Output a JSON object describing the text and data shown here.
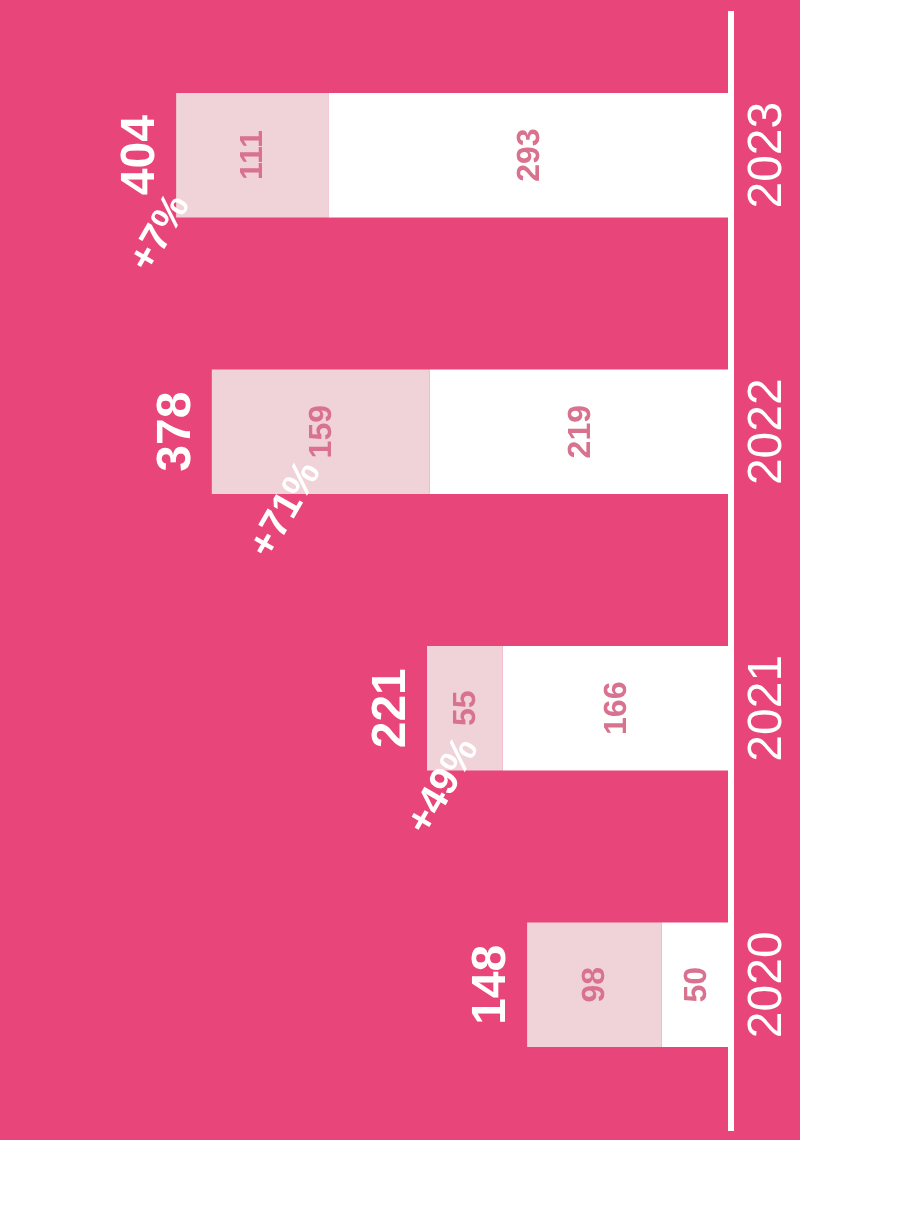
{
  "chart_data": {
    "type": "bar",
    "orientation": "horizontal",
    "stacked": true,
    "data_labels": true,
    "categories": [
      "2023",
      "2022",
      "2021",
      "2020"
    ],
    "series": [
      {
        "color": "#ffffff",
        "values": [
          293,
          219,
          166,
          50
        ]
      },
      {
        "color": "#f0d3d8",
        "values": [
          111,
          159,
          55,
          98
        ]
      }
    ],
    "totals": [
      "404",
      "378",
      "221",
      "148"
    ],
    "annotations": [
      "+7%",
      "+71%",
      "+49%"
    ],
    "grid": false
  }
}
